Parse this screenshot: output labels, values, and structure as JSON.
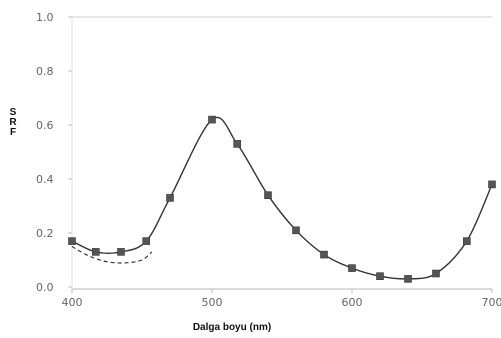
{
  "chart_data": {
    "type": "line",
    "xlabel": "Dalga boyu (nm)",
    "ylabel": "SRF",
    "xlim": [
      400,
      700
    ],
    "ylim": [
      0,
      1.0
    ],
    "x_ticks": [
      "400",
      "500",
      "600",
      "700"
    ],
    "y_ticks": [
      "0.0",
      "0.2",
      "0.4",
      "0.6",
      "0.8",
      "1.0"
    ],
    "x_tick_values": [
      400,
      500,
      600,
      700
    ],
    "y_tick_values": [
      0,
      0.2,
      0.4,
      0.6,
      0.8,
      1.0
    ],
    "grid": false,
    "series": [
      {
        "style": "solid-line-square-markers",
        "x": [
          400,
          417,
          435,
          453,
          470,
          500,
          518,
          540,
          560,
          580,
          600,
          620,
          640,
          660,
          682,
          700
        ],
        "y": [
          0.17,
          0.13,
          0.13,
          0.17,
          0.33,
          0.62,
          0.53,
          0.34,
          0.21,
          0.12,
          0.07,
          0.04,
          0.03,
          0.05,
          0.17,
          0.38
        ]
      },
      {
        "style": "dashed-line",
        "x": [
          400,
          410,
          420,
          430,
          440,
          450,
          457
        ],
        "y": [
          0.15,
          0.12,
          0.1,
          0.09,
          0.09,
          0.1,
          0.13
        ]
      }
    ],
    "line_color": "#333333",
    "marker_color": "#555555"
  }
}
